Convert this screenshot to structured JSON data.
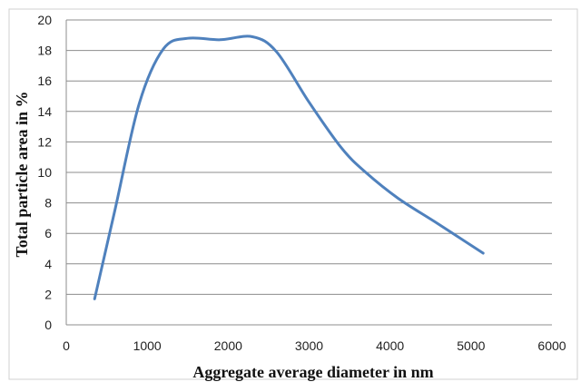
{
  "chart_data": {
    "type": "line",
    "xlabel": "Aggregate average diameter  in  nm",
    "ylabel": "Total particle  area in  %",
    "xlim": [
      0,
      6000
    ],
    "ylim": [
      0,
      20
    ],
    "xticks": [
      0,
      1000,
      2000,
      3000,
      4000,
      5000,
      6000
    ],
    "yticks": [
      0,
      2,
      4,
      6,
      8,
      10,
      12,
      14,
      16,
      18,
      20
    ],
    "grid": "horizontal",
    "legend": "none",
    "series": [
      {
        "color": "#4f81bd",
        "x": [
          350,
          600,
          900,
          1200,
          1500,
          1900,
          2300,
          2600,
          3000,
          3400,
          3700,
          4100,
          4600,
          5150
        ],
        "y": [
          1.7,
          7.5,
          14.5,
          18.1,
          18.8,
          18.7,
          18.9,
          17.9,
          14.6,
          11.6,
          10.0,
          8.3,
          6.6,
          4.7
        ]
      }
    ]
  }
}
